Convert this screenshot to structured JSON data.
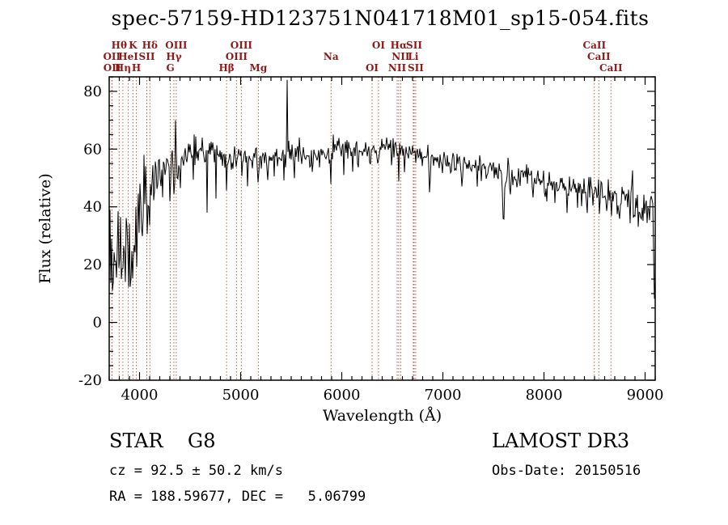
{
  "window": {
    "title": "spec-57159-HD123751N041718M01_sp15-054.fits"
  },
  "footer": {
    "class_label": "STAR    G8",
    "survey": "LAMOST DR3",
    "cz": "cz = 92.5 ± 50.2 km/s",
    "obs_date": "Obs-Date: 20150516",
    "radec": "RA = 188.59677, DEC =   5.06799"
  },
  "chart_data": {
    "type": "line",
    "title": "spec-57159-HD123751N041718M01_sp15-054.fits",
    "xlabel": "Wavelength (Å)",
    "ylabel": "Flux (relative)",
    "xlim": [
      3700,
      9100
    ],
    "ylim": [
      -20,
      85
    ],
    "xticks": [
      4000,
      5000,
      6000,
      7000,
      8000,
      9000
    ],
    "yticks": [
      -20,
      0,
      20,
      40,
      60,
      80
    ],
    "x_minor_step": 100,
    "y_minor_step": 5,
    "grid": false,
    "series_color": "#000000",
    "line_markers": {
      "line_color": "#b65c44",
      "label_color": "#8b1a1a",
      "items": [
        {
          "label": "Hθ",
          "wl": 3798,
          "row": 1
        },
        {
          "label": "K",
          "wl": 3934,
          "row": 1
        },
        {
          "label": "Hδ",
          "wl": 4102,
          "row": 1
        },
        {
          "label": "OIII",
          "wl": 4363,
          "row": 1
        },
        {
          "label": "OIII",
          "wl": 5007,
          "row": 1
        },
        {
          "label": "OI",
          "wl": 6363,
          "row": 1
        },
        {
          "label": "Hα",
          "wl": 6563,
          "row": 1
        },
        {
          "label": "SII",
          "wl": 6716,
          "row": 1
        },
        {
          "label": "CaII",
          "wl": 8498,
          "row": 1
        },
        {
          "label": "OII",
          "wl": 3726,
          "row": 2
        },
        {
          "label": "HeI",
          "wl": 3889,
          "row": 2
        },
        {
          "label": "SII",
          "wl": 4072,
          "row": 2
        },
        {
          "label": "Hγ",
          "wl": 4340,
          "row": 2
        },
        {
          "label": "OIII",
          "wl": 4959,
          "row": 2
        },
        {
          "label": "Na",
          "wl": 5894,
          "row": 2
        },
        {
          "label": "NII",
          "wl": 6583,
          "row": 2
        },
        {
          "label": "Li",
          "wl": 6707,
          "row": 2
        },
        {
          "label": "CaII",
          "wl": 8542,
          "row": 2
        },
        {
          "label": "OII",
          "wl": 3729,
          "row": 3
        },
        {
          "label": "Hη",
          "wl": 3835,
          "row": 3
        },
        {
          "label": "H",
          "wl": 3969,
          "row": 3
        },
        {
          "label": "G",
          "wl": 4305,
          "row": 3
        },
        {
          "label": "Hβ",
          "wl": 4861,
          "row": 3
        },
        {
          "label": "Mg",
          "wl": 5175,
          "row": 3
        },
        {
          "label": "OI",
          "wl": 6300,
          "row": 3
        },
        {
          "label": "NII",
          "wl": 6548,
          "row": 3
        },
        {
          "label": "SII",
          "wl": 6731,
          "row": 3
        },
        {
          "label": "CaII",
          "wl": 8662,
          "row": 3
        }
      ]
    },
    "spectrum": {
      "sample_step": 8,
      "seed": 20150516,
      "continuum": [
        [
          3700,
          26
        ],
        [
          3720,
          24
        ],
        [
          3740,
          28
        ],
        [
          3760,
          30
        ],
        [
          3780,
          32
        ],
        [
          3800,
          33
        ],
        [
          3830,
          31
        ],
        [
          3860,
          29
        ],
        [
          3890,
          27
        ],
        [
          3920,
          28
        ],
        [
          3950,
          33
        ],
        [
          3980,
          37
        ],
        [
          4000,
          40
        ],
        [
          4040,
          44
        ],
        [
          4080,
          45
        ],
        [
          4120,
          46
        ],
        [
          4160,
          49
        ],
        [
          4200,
          51
        ],
        [
          4240,
          52
        ],
        [
          4280,
          51
        ],
        [
          4320,
          52
        ],
        [
          4360,
          54
        ],
        [
          4400,
          56
        ],
        [
          4450,
          58
        ],
        [
          4500,
          59
        ],
        [
          4600,
          60
        ],
        [
          4700,
          59
        ],
        [
          4800,
          58
        ],
        [
          4900,
          57
        ],
        [
          5000,
          58
        ],
        [
          5100,
          57
        ],
        [
          5200,
          56
        ],
        [
          5300,
          57
        ],
        [
          5400,
          58
        ],
        [
          5500,
          58
        ],
        [
          5600,
          58
        ],
        [
          5700,
          57
        ],
        [
          5800,
          58
        ],
        [
          5900,
          59
        ],
        [
          6000,
          60
        ],
        [
          6100,
          60
        ],
        [
          6200,
          59
        ],
        [
          6300,
          59
        ],
        [
          6400,
          60
        ],
        [
          6500,
          60
        ],
        [
          6600,
          60
        ],
        [
          6700,
          59
        ],
        [
          6800,
          58
        ],
        [
          6900,
          57
        ],
        [
          7000,
          56
        ],
        [
          7100,
          55
        ],
        [
          7200,
          55
        ],
        [
          7300,
          54
        ],
        [
          7400,
          53
        ],
        [
          7500,
          53
        ],
        [
          7600,
          52
        ],
        [
          7700,
          51
        ],
        [
          7800,
          51
        ],
        [
          7900,
          50
        ],
        [
          8000,
          49
        ],
        [
          8100,
          48
        ],
        [
          8200,
          48
        ],
        [
          8300,
          47
        ],
        [
          8400,
          46
        ],
        [
          8500,
          45
        ],
        [
          8600,
          45
        ],
        [
          8700,
          44
        ],
        [
          8800,
          43
        ],
        [
          8900,
          42
        ],
        [
          9000,
          41
        ],
        [
          9050,
          40
        ],
        [
          9100,
          39
        ]
      ],
      "noise_sigma": [
        [
          3700,
          8.5
        ],
        [
          3800,
          8
        ],
        [
          3900,
          7
        ],
        [
          4000,
          5.5
        ],
        [
          4100,
          5
        ],
        [
          4200,
          4.5
        ],
        [
          4300,
          4
        ],
        [
          4400,
          3.2
        ],
        [
          4600,
          2.8
        ],
        [
          4800,
          2.4
        ],
        [
          5000,
          2.2
        ],
        [
          5500,
          2.0
        ],
        [
          6000,
          1.8
        ],
        [
          6500,
          1.7
        ],
        [
          7000,
          1.8
        ],
        [
          7500,
          2.0
        ],
        [
          8000,
          2.2
        ],
        [
          8400,
          2.5
        ],
        [
          8700,
          3.0
        ],
        [
          8900,
          3.8
        ],
        [
          9000,
          4.2
        ],
        [
          9100,
          5.0
        ]
      ],
      "emission_spikes": [
        [
          4044,
          58,
          2.5
        ],
        [
          4356,
          70,
          2.5
        ],
        [
          5460,
          84,
          2.5
        ],
        [
          5580,
          64,
          2.5
        ],
        [
          5916,
          65,
          2.5
        ]
      ],
      "absorption_dips": [
        [
          3735,
          6,
          4
        ],
        [
          3770,
          13,
          3
        ],
        [
          3798,
          16,
          3
        ],
        [
          3820,
          15,
          3
        ],
        [
          3860,
          14,
          3
        ],
        [
          3890,
          12,
          3
        ],
        [
          3912,
          9,
          4
        ],
        [
          3934,
          11,
          3
        ],
        [
          3952,
          13,
          3
        ],
        [
          3970,
          16,
          3
        ],
        [
          4026,
          26,
          3
        ],
        [
          4077,
          30,
          3
        ],
        [
          4101,
          33,
          3
        ],
        [
          4144,
          38,
          3
        ],
        [
          4226,
          40,
          3
        ],
        [
          4300,
          42,
          5
        ],
        [
          4341,
          44,
          3
        ],
        [
          4383,
          45,
          3
        ],
        [
          4405,
          46,
          3
        ],
        [
          4530,
          47,
          3
        ],
        [
          4668,
          38,
          3
        ],
        [
          4754,
          40,
          3
        ],
        [
          4861,
          45,
          3
        ],
        [
          4920,
          47,
          3
        ],
        [
          5015,
          46,
          3
        ],
        [
          5070,
          44,
          3
        ],
        [
          5175,
          46,
          4
        ],
        [
          5270,
          48,
          3
        ],
        [
          5330,
          49,
          3
        ],
        [
          5430,
          47,
          3
        ],
        [
          5530,
          48,
          3
        ],
        [
          5712,
          47,
          3
        ],
        [
          5890,
          47,
          4
        ],
        [
          6020,
          51,
          3
        ],
        [
          6110,
          50,
          3
        ],
        [
          6160,
          51,
          3
        ],
        [
          6280,
          50,
          3
        ],
        [
          6360,
          51,
          3
        ],
        [
          6495,
          51,
          3
        ],
        [
          6563,
          48,
          3
        ],
        [
          6620,
          52,
          3
        ],
        [
          6870,
          44,
          5
        ],
        [
          6960,
          50,
          3
        ],
        [
          7080,
          48,
          3
        ],
        [
          7190,
          46,
          4
        ],
        [
          7340,
          47,
          3
        ],
        [
          7440,
          46,
          3
        ],
        [
          7600,
          34,
          8
        ],
        [
          7665,
          42,
          4
        ],
        [
          7720,
          45,
          3
        ],
        [
          7890,
          42,
          3
        ],
        [
          8010,
          41,
          3
        ],
        [
          8110,
          40,
          3
        ],
        [
          8230,
          36,
          4
        ],
        [
          8330,
          38,
          3
        ],
        [
          8430,
          37,
          3
        ],
        [
          8550,
          35,
          3
        ],
        [
          8670,
          34,
          3
        ],
        [
          8750,
          33,
          3
        ],
        [
          8850,
          32,
          3
        ],
        [
          8930,
          30,
          3
        ],
        [
          9095,
          5,
          7
        ]
      ]
    }
  }
}
